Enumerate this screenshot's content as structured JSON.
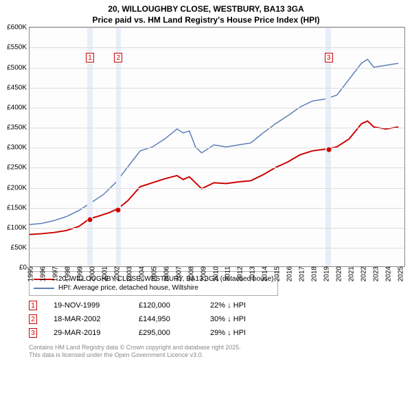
{
  "title_line1": "20, WILLOUGHBY CLOSE, WESTBURY, BA13 3GA",
  "title_line2": "Price paid vs. HM Land Registry's House Price Index (HPI)",
  "chart": {
    "type": "line",
    "xlim": [
      1995,
      2025.5
    ],
    "ylim": [
      0,
      600000
    ],
    "ytick_step": 50000,
    "y_labels": [
      "£0",
      "£50K",
      "£100K",
      "£150K",
      "£200K",
      "£250K",
      "£300K",
      "£350K",
      "£400K",
      "£450K",
      "£500K",
      "£550K",
      "£600K"
    ],
    "x_labels": [
      "1995",
      "1996",
      "1997",
      "1998",
      "1999",
      "2000",
      "2001",
      "2002",
      "2003",
      "2004",
      "2005",
      "2006",
      "2007",
      "2008",
      "2009",
      "2010",
      "2011",
      "2012",
      "2013",
      "2014",
      "2015",
      "2016",
      "2017",
      "2018",
      "2019",
      "2020",
      "2021",
      "2022",
      "2023",
      "2024",
      "2025"
    ],
    "grid_color": "#dcdcdc",
    "background_color": "#ffffff",
    "highlight_band_color": "#e8eef8",
    "highlight_bands": [
      {
        "start": 1999.7,
        "end": 2000.1
      },
      {
        "start": 2002.0,
        "end": 2002.4
      },
      {
        "start": 2019.0,
        "end": 2019.45
      }
    ],
    "markers": [
      {
        "n": "1",
        "x": 1999.9,
        "y_box": 525000,
        "y_dot": 120000,
        "color": "#cc0000"
      },
      {
        "n": "2",
        "x": 2002.2,
        "y_box": 525000,
        "y_dot": 144950,
        "color": "#cc0000"
      },
      {
        "n": "3",
        "x": 2019.25,
        "y_box": 525000,
        "y_dot": 295000,
        "color": "#cc0000"
      }
    ],
    "series": [
      {
        "name": "price_paid",
        "color": "#cc0000",
        "line_width": 2,
        "points": [
          [
            1995,
            80000
          ],
          [
            1996,
            82000
          ],
          [
            1997,
            85000
          ],
          [
            1998,
            90000
          ],
          [
            1999,
            100000
          ],
          [
            1999.9,
            120000
          ],
          [
            2000.5,
            125000
          ],
          [
            2001,
            130000
          ],
          [
            2001.5,
            135000
          ],
          [
            2002.2,
            144950
          ],
          [
            2003,
            165000
          ],
          [
            2004,
            200000
          ],
          [
            2005,
            210000
          ],
          [
            2006,
            220000
          ],
          [
            2007,
            228000
          ],
          [
            2007.5,
            218000
          ],
          [
            2008,
            225000
          ],
          [
            2009,
            195000
          ],
          [
            2010,
            210000
          ],
          [
            2011,
            208000
          ],
          [
            2012,
            212000
          ],
          [
            2013,
            215000
          ],
          [
            2014,
            230000
          ],
          [
            2015,
            248000
          ],
          [
            2016,
            262000
          ],
          [
            2017,
            280000
          ],
          [
            2018,
            290000
          ],
          [
            2019.25,
            295000
          ],
          [
            2020,
            300000
          ],
          [
            2021,
            320000
          ],
          [
            2022,
            358000
          ],
          [
            2022.5,
            365000
          ],
          [
            2023,
            350000
          ],
          [
            2024,
            345000
          ],
          [
            2025,
            350000
          ]
        ]
      },
      {
        "name": "hpi",
        "color": "#5b7cb8",
        "line_width": 1.5,
        "points": [
          [
            1995,
            105000
          ],
          [
            1996,
            108000
          ],
          [
            1997,
            115000
          ],
          [
            1998,
            125000
          ],
          [
            1999,
            140000
          ],
          [
            2000,
            160000
          ],
          [
            2001,
            180000
          ],
          [
            2002,
            210000
          ],
          [
            2003,
            250000
          ],
          [
            2004,
            290000
          ],
          [
            2005,
            300000
          ],
          [
            2006,
            320000
          ],
          [
            2007,
            345000
          ],
          [
            2007.5,
            335000
          ],
          [
            2008,
            340000
          ],
          [
            2008.5,
            300000
          ],
          [
            2009,
            285000
          ],
          [
            2010,
            305000
          ],
          [
            2011,
            300000
          ],
          [
            2012,
            305000
          ],
          [
            2013,
            310000
          ],
          [
            2014,
            335000
          ],
          [
            2015,
            358000
          ],
          [
            2016,
            378000
          ],
          [
            2017,
            400000
          ],
          [
            2018,
            415000
          ],
          [
            2019,
            420000
          ],
          [
            2020,
            430000
          ],
          [
            2021,
            470000
          ],
          [
            2022,
            510000
          ],
          [
            2022.5,
            520000
          ],
          [
            2023,
            500000
          ],
          [
            2024,
            505000
          ],
          [
            2025,
            510000
          ]
        ]
      }
    ]
  },
  "legend": {
    "items": [
      {
        "color": "#cc0000",
        "label": "20, WILLOUGHBY CLOSE, WESTBURY, BA13 3GA (detached house)"
      },
      {
        "color": "#5b7cb8",
        "label": "HPI: Average price, detached house, Wiltshire"
      }
    ]
  },
  "transactions": [
    {
      "n": "1",
      "date": "19-NOV-1999",
      "price": "£120,000",
      "delta": "22% ↓ HPI",
      "color": "#cc0000"
    },
    {
      "n": "2",
      "date": "18-MAR-2002",
      "price": "£144,950",
      "delta": "30% ↓ HPI",
      "color": "#cc0000"
    },
    {
      "n": "3",
      "date": "29-MAR-2019",
      "price": "£295,000",
      "delta": "29% ↓ HPI",
      "color": "#cc0000"
    }
  ],
  "footer_line1": "Contains HM Land Registry data © Crown copyright and database right 2025.",
  "footer_line2": "This data is licensed under the Open Government Licence v3.0."
}
